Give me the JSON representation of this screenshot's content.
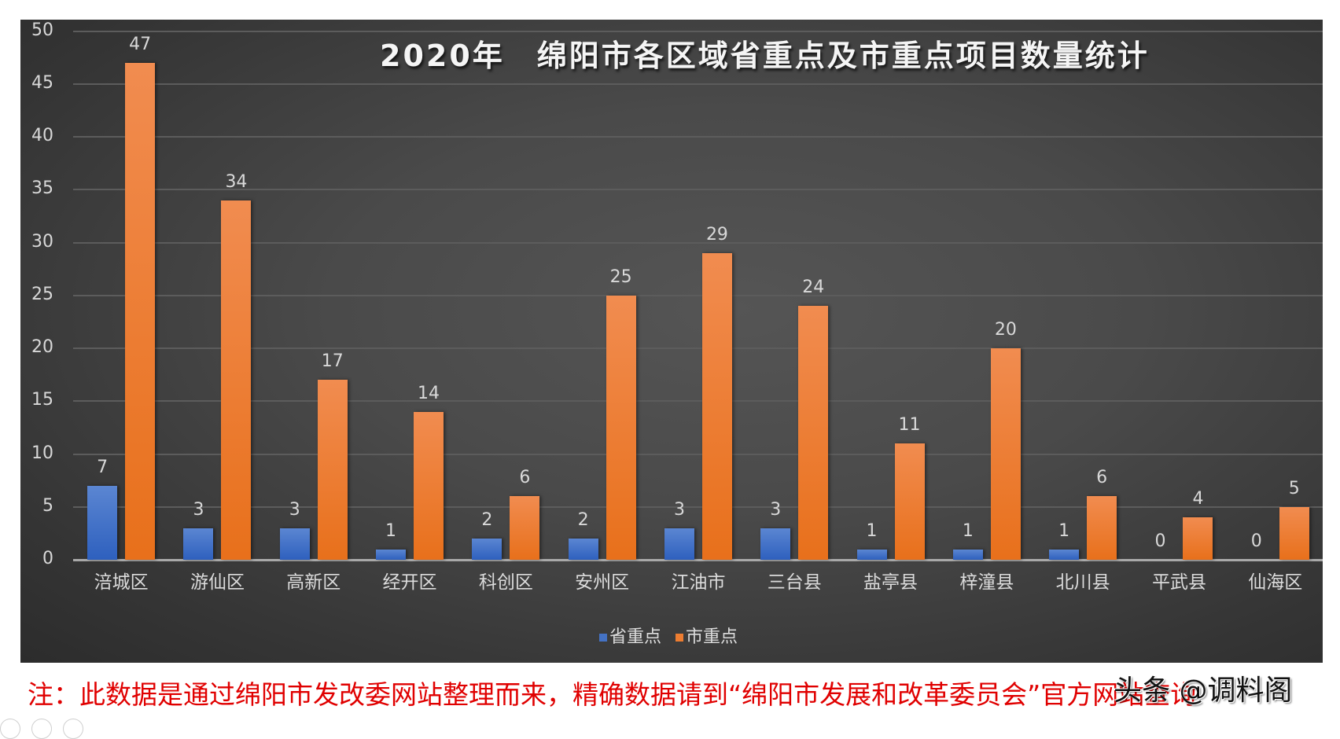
{
  "chart_data": {
    "type": "bar",
    "title": "2020年　绵阳市各区域省重点及市重点项目数量统计",
    "xlabel": "",
    "ylabel": "",
    "ylim": [
      0,
      50
    ],
    "yticks": [
      0,
      5,
      10,
      15,
      20,
      25,
      30,
      35,
      40,
      45,
      50
    ],
    "grid": true,
    "legend_position": "bottom",
    "categories": [
      "涪城区",
      "游仙区",
      "高新区",
      "经开区",
      "科创区",
      "安州区",
      "江油市",
      "三台县",
      "盐亭县",
      "梓潼县",
      "北川县",
      "平武县",
      "仙海区"
    ],
    "series": [
      {
        "name": "省重点",
        "color": "#4472c4",
        "values": [
          7,
          3,
          3,
          1,
          2,
          2,
          3,
          3,
          1,
          1,
          1,
          0,
          0
        ]
      },
      {
        "name": "市重点",
        "color": "#ed7d31",
        "values": [
          47,
          34,
          17,
          14,
          6,
          25,
          29,
          24,
          11,
          20,
          6,
          4,
          5
        ]
      }
    ]
  },
  "legend": {
    "prov": "省重点",
    "city": "市重点"
  },
  "note": "注：此数据是通过绵阳市发改委网站整理而来，精确数据请到“绵阳市发展和改革委员会”官方网站查询",
  "watermark": "头条 @调料阁"
}
